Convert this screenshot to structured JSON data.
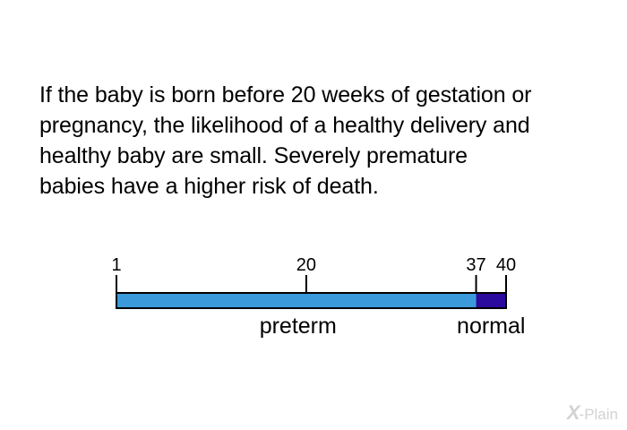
{
  "paragraph": {
    "lines": [
      "If the baby is born before 20 weeks of gestation or",
      "pregnancy, the likelihood of a healthy delivery and",
      "healthy baby are small. Severely premature",
      "babies have a higher risk of death."
    ]
  },
  "timeline": {
    "min": 1,
    "max": 40,
    "ticks": [
      {
        "value": 1,
        "label": "1"
      },
      {
        "value": 20,
        "label": "20"
      },
      {
        "value": 37,
        "label": "37"
      },
      {
        "value": 40,
        "label": "40"
      }
    ],
    "segments": [
      {
        "start": 1,
        "end": 37,
        "label": "preterm",
        "color": "#3b9ad9"
      },
      {
        "start": 37,
        "end": 40,
        "label": "normal",
        "color": "#2b0a9e"
      }
    ],
    "outline_color": "#000000"
  },
  "logo": {
    "mark": "X",
    "text": "-Plain",
    "color": "#d2d2d2"
  }
}
